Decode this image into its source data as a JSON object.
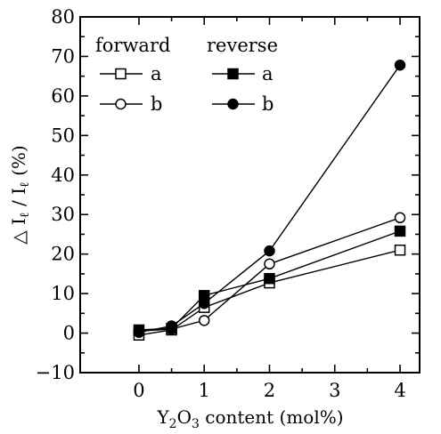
{
  "chart_data": {
    "type": "line",
    "title": "",
    "xlabel_parts": [
      "Y",
      "2",
      "O",
      "3",
      " content (mol%)"
    ],
    "ylabel_parts": [
      "△ I",
      "ℓ",
      " / I",
      "ℓ",
      " (%)"
    ],
    "xlim": [
      -0.9,
      4.3
    ],
    "ylim": [
      -10,
      80
    ],
    "xticks": [
      0,
      1,
      2,
      3,
      4
    ],
    "yticks": [
      -10,
      0,
      10,
      20,
      30,
      40,
      50,
      60,
      70,
      80
    ],
    "xtick_labels": [
      "0",
      "1",
      "2",
      "3",
      "4"
    ],
    "ytick_labels": [
      "−10",
      "0",
      "10",
      "20",
      "30",
      "40",
      "50",
      "60",
      "70",
      "80"
    ],
    "grid": false,
    "legend": {
      "placement": "top-left",
      "group_headers": [
        "forward",
        "reverse"
      ]
    },
    "series": [
      {
        "name": "a",
        "group": "forward",
        "marker": "square-open",
        "x": [
          0,
          0.5,
          1,
          2,
          4
        ],
        "y": [
          -0.5,
          0.8,
          6.5,
          12.7,
          21
        ]
      },
      {
        "name": "b",
        "group": "forward",
        "marker": "circle-open",
        "x": [
          0,
          0.5,
          1,
          2,
          4
        ],
        "y": [
          0.5,
          1.0,
          3.2,
          17.5,
          29.2
        ]
      },
      {
        "name": "a",
        "group": "reverse",
        "marker": "square-filled",
        "x": [
          0,
          0.5,
          1,
          2,
          4
        ],
        "y": [
          0.8,
          1.2,
          9.5,
          13.8,
          25.8
        ]
      },
      {
        "name": "b",
        "group": "reverse",
        "marker": "circle-filled",
        "x": [
          0,
          0.5,
          1,
          2,
          4
        ],
        "y": [
          0.2,
          1.8,
          7.5,
          20.8,
          67.8
        ]
      }
    ]
  }
}
